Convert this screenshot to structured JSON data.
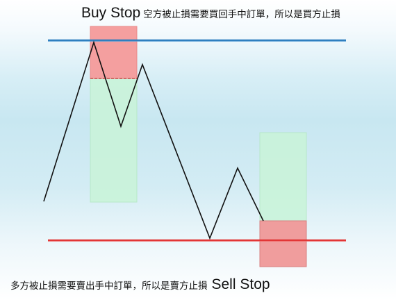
{
  "top_caption": {
    "title": "Buy Stop",
    "text": "空方被止損需要買回手中訂單，所以是買方止損"
  },
  "bottom_caption": {
    "text": "多方被止損需要賣出手中訂單，所以是賣方止損",
    "title": "Sell Stop"
  },
  "colors": {
    "upper_line": "#2f7fbf",
    "lower_line": "#e03030",
    "stop_zone": "#f49a9a",
    "profit_zone": "#c9f3d9",
    "price_path": "#111111"
  }
}
